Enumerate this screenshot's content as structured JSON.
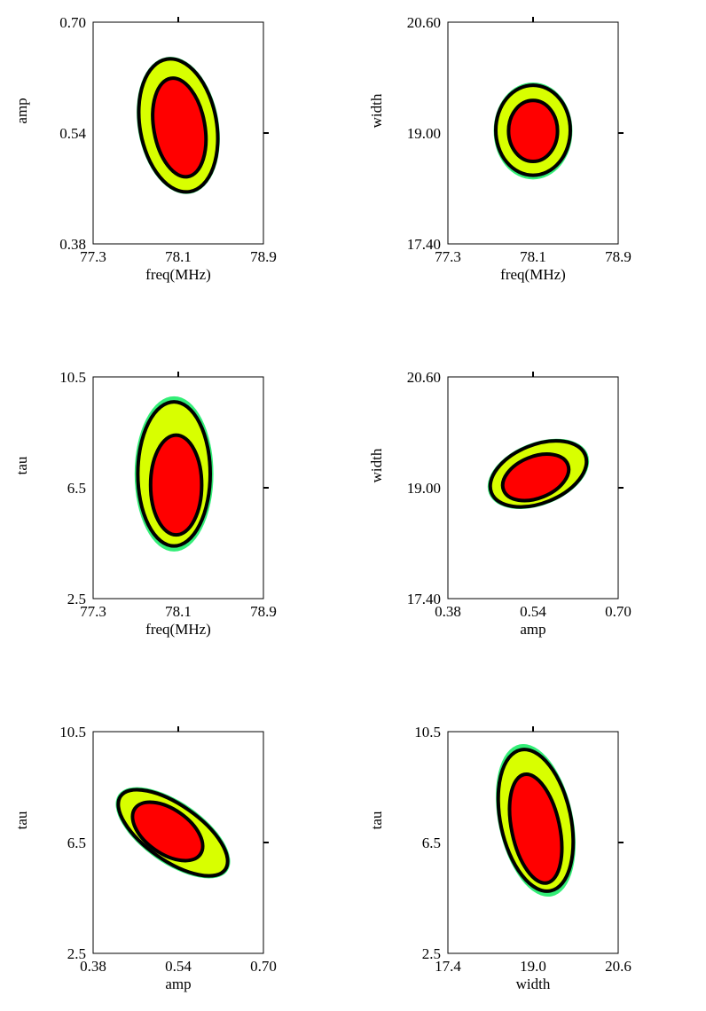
{
  "colors": {
    "level_inner": "#ff0000",
    "level_middle": "#d8ff00",
    "level_outer": "#33ee77",
    "contour_line": "#000000",
    "background": "#ffffff"
  },
  "chart_data": [
    {
      "type": "contour",
      "xlabel": "freq(MHz)",
      "ylabel": "amp",
      "xticks": [
        "77.3",
        "78.1",
        "78.9"
      ],
      "yticks": [
        "0.38",
        "0.54",
        "0.70"
      ],
      "xlim": [
        77.3,
        78.9
      ],
      "ylim": [
        0.38,
        0.7
      ],
      "regions": {
        "outer": {
          "cx": 78.1,
          "cy": 0.551,
          "rx": 0.38,
          "ry": 0.1,
          "angle": -10
        },
        "middle": {
          "cx": 78.1,
          "cy": 0.551,
          "rx": 0.36,
          "ry": 0.097,
          "angle": -10
        },
        "inner": {
          "cx": 78.11,
          "cy": 0.548,
          "rx": 0.24,
          "ry": 0.072,
          "angle": -10
        }
      }
    },
    {
      "type": "contour",
      "xlabel": "freq(MHz)",
      "ylabel": "width",
      "xticks": [
        "77.3",
        "78.1",
        "78.9"
      ],
      "yticks": [
        "17.40",
        "19.00",
        "20.60"
      ],
      "xlim": [
        77.3,
        78.9
      ],
      "ylim": [
        17.4,
        20.6
      ],
      "regions": {
        "outer": {
          "cx": 78.1,
          "cy": 19.03,
          "rx": 0.37,
          "ry": 0.7,
          "angle": 0
        },
        "middle": {
          "cx": 78.1,
          "cy": 19.04,
          "rx": 0.35,
          "ry": 0.65,
          "angle": 0
        },
        "inner": {
          "cx": 78.1,
          "cy": 19.03,
          "rx": 0.23,
          "ry": 0.44,
          "angle": 0
        }
      }
    },
    {
      "type": "contour",
      "xlabel": "freq(MHz)",
      "ylabel": "tau",
      "xticks": [
        "77.3",
        "78.1",
        "78.9"
      ],
      "yticks": [
        "2.5",
        "6.5",
        "10.5"
      ],
      "xlim": [
        77.3,
        78.9
      ],
      "ylim": [
        2.5,
        10.5
      ],
      "regions": {
        "outer": {
          "cx": 78.06,
          "cy": 7.0,
          "rx": 0.37,
          "ry": 2.8,
          "angle": 0
        },
        "middle": {
          "cx": 78.06,
          "cy": 7.0,
          "rx": 0.34,
          "ry": 2.6,
          "angle": 0
        },
        "inner": {
          "cx": 78.08,
          "cy": 6.6,
          "rx": 0.24,
          "ry": 1.8,
          "angle": 0
        }
      }
    },
    {
      "type": "contour",
      "xlabel": "amp",
      "ylabel": "width",
      "xticks": [
        "0.38",
        "0.54",
        "0.70"
      ],
      "yticks": [
        "17.40",
        "19.00",
        "20.60"
      ],
      "xlim": [
        0.38,
        0.7
      ],
      "ylim": [
        17.4,
        20.6
      ],
      "regions": {
        "outer": {
          "cx": 0.55,
          "cy": 19.2,
          "rx": 0.1,
          "ry": 0.45,
          "angle": -22
        },
        "middle": {
          "cx": 0.55,
          "cy": 19.2,
          "rx": 0.095,
          "ry": 0.42,
          "angle": -22
        },
        "inner": {
          "cx": 0.545,
          "cy": 19.15,
          "rx": 0.065,
          "ry": 0.3,
          "angle": -22
        }
      }
    },
    {
      "type": "contour",
      "xlabel": "amp",
      "ylabel": "tau",
      "xticks": [
        "0.38",
        "0.54",
        "0.70"
      ],
      "yticks": [
        "2.5",
        "6.5",
        "10.5"
      ],
      "xlim": [
        0.38,
        0.7
      ],
      "ylim": [
        2.5,
        10.5
      ],
      "regions": {
        "outer": {
          "cx": 0.53,
          "cy": 6.85,
          "rx": 0.125,
          "ry": 1.1,
          "angle": 35
        },
        "middle": {
          "cx": 0.53,
          "cy": 6.85,
          "rx": 0.12,
          "ry": 1.0,
          "angle": 35
        },
        "inner": {
          "cx": 0.52,
          "cy": 6.9,
          "rx": 0.075,
          "ry": 0.8,
          "angle": 35
        }
      }
    },
    {
      "type": "contour",
      "xlabel": "width",
      "ylabel": "tau",
      "xticks": [
        "17.4",
        "19.0",
        "20.6"
      ],
      "yticks": [
        "2.5",
        "6.5",
        "10.5"
      ],
      "xlim": [
        17.4,
        20.6
      ],
      "ylim": [
        2.5,
        10.5
      ],
      "regions": {
        "outer": {
          "cx": 19.05,
          "cy": 7.3,
          "rx": 0.7,
          "ry": 2.8,
          "angle": -12
        },
        "middle": {
          "cx": 19.05,
          "cy": 7.3,
          "rx": 0.66,
          "ry": 2.6,
          "angle": -12
        },
        "inner": {
          "cx": 19.05,
          "cy": 7.0,
          "rx": 0.45,
          "ry": 2.0,
          "angle": -12
        }
      }
    }
  ]
}
